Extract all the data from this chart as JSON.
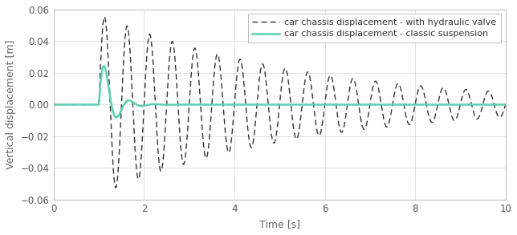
{
  "title": "",
  "xlabel": "Time [s]",
  "ylabel": "Vertical displacement [m]",
  "xlim": [
    0,
    10
  ],
  "ylim": [
    -0.06,
    0.06
  ],
  "yticks": [
    -0.06,
    -0.04,
    -0.02,
    0.0,
    0.02,
    0.04,
    0.06
  ],
  "xticks": [
    0,
    2,
    4,
    6,
    8,
    10
  ],
  "legend1": "car chassis displacement - classic suspension",
  "legend2": "car chassis displacement - with hydraulic valve",
  "color_classic": "#5dcfb0",
  "color_hydraulic": "#333333",
  "step_time": 1.0,
  "classic_amplitude": 0.04,
  "classic_decay": 4.0,
  "classic_freq": 1.8,
  "hydraulic_amplitude": 0.057,
  "hydraulic_decay": 0.22,
  "hydraulic_freq": 2.0,
  "figsize": [
    6.44,
    2.93
  ],
  "dpi": 100
}
